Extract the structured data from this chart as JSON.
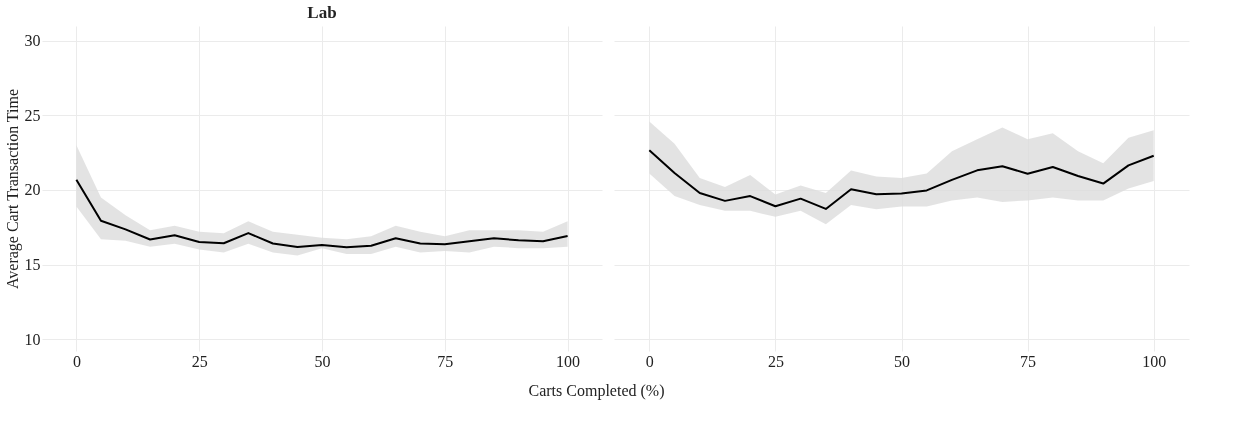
{
  "chart_data": [
    {
      "type": "line",
      "title": "Lab",
      "xlabel": "Carts Completed (%)",
      "ylabel": "Average Cart Transaction Time",
      "x": [
        0,
        5,
        10,
        15,
        20,
        25,
        30,
        35,
        40,
        45,
        50,
        55,
        60,
        65,
        70,
        75,
        80,
        85,
        90,
        95,
        100
      ],
      "xlim": [
        -7,
        107
      ],
      "xticks": [
        0,
        25,
        50,
        75,
        100
      ],
      "ylim": [
        9.2,
        31
      ],
      "yticks": [
        10,
        15,
        20,
        25,
        30
      ],
      "grid": true,
      "series": [
        {
          "color": "#000000",
          "values": [
            20.69,
            17.94,
            17.36,
            16.68,
            16.96,
            16.51,
            16.43,
            17.11,
            16.41,
            16.18,
            16.31,
            16.16,
            16.26,
            16.76,
            16.41,
            16.36,
            16.56,
            16.76,
            16.63,
            16.56,
            16.91
          ],
          "lower": [
            18.9,
            16.7,
            16.6,
            16.2,
            16.4,
            16.0,
            15.8,
            16.4,
            15.8,
            15.6,
            16.1,
            15.7,
            15.7,
            16.2,
            15.8,
            15.9,
            15.8,
            16.2,
            16.1,
            16.1,
            16.2
          ],
          "upper": [
            23.0,
            19.5,
            18.3,
            17.3,
            17.6,
            17.2,
            17.1,
            17.9,
            17.2,
            17.0,
            16.8,
            16.7,
            16.9,
            17.6,
            17.2,
            16.9,
            17.3,
            17.3,
            17.3,
            17.2,
            17.9
          ]
        }
      ]
    },
    {
      "type": "line",
      "x": [
        0,
        5,
        10,
        15,
        20,
        25,
        30,
        35,
        40,
        45,
        50,
        55,
        60,
        65,
        70,
        75,
        80,
        85,
        90,
        95,
        100
      ],
      "xlim": [
        -7,
        107
      ],
      "xticks": [
        0,
        25,
        50,
        75,
        100
      ],
      "ylim": [
        9.2,
        31
      ],
      "yticks": [
        10,
        15,
        20,
        25,
        30
      ],
      "grid": true,
      "tick_labels": "x",
      "series": [
        {
          "color": "#000000",
          "values": [
            22.66,
            21.14,
            19.8,
            19.27,
            19.59,
            18.91,
            19.42,
            18.73,
            20.05,
            19.72,
            19.77,
            19.97,
            20.68,
            21.32,
            21.59,
            21.09,
            21.54,
            20.94,
            20.43,
            21.65,
            22.3
          ],
          "lower": [
            21.1,
            19.6,
            19.0,
            18.6,
            18.6,
            18.2,
            18.6,
            17.7,
            19.0,
            18.7,
            18.9,
            18.9,
            19.3,
            19.5,
            19.2,
            19.3,
            19.5,
            19.3,
            19.3,
            20.1,
            20.6
          ],
          "upper": [
            24.6,
            23.1,
            20.8,
            20.2,
            21.0,
            19.7,
            20.3,
            19.8,
            21.3,
            20.9,
            20.8,
            21.1,
            22.6,
            23.4,
            24.2,
            23.4,
            23.8,
            22.6,
            21.8,
            23.5,
            24.0
          ]
        }
      ]
    }
  ]
}
